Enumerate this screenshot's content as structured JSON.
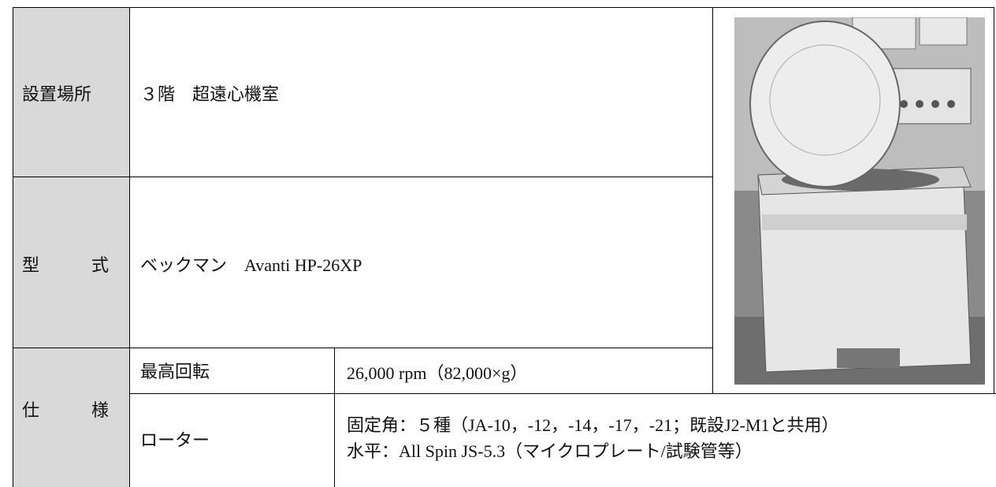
{
  "rows": [
    {
      "label": "設置場所",
      "value": "３階　超遠心機室"
    },
    {
      "label": "型　　式",
      "value": "ベックマン　Avanti HP-26XP"
    }
  ],
  "spec": {
    "label": "仕　　様",
    "items": [
      {
        "name": "最高回転",
        "lines": [
          "26,000 rpm（82,000×g）"
        ]
      },
      {
        "name": "ローター",
        "lines": [
          "固定角：５種（JA-10，-12，-14，-17，-21；既設J2-M1と共用）",
          "水平：All Spin JS-5.3（マイクロプレート/試験管等）"
        ]
      }
    ]
  }
}
